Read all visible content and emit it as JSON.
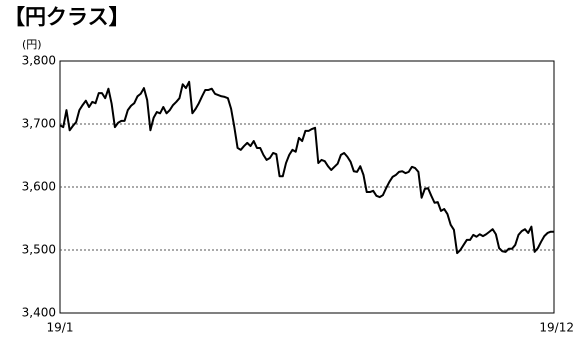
{
  "chart_data": {
    "type": "line",
    "title": "【円クラス】",
    "y_unit": "(円)",
    "categories": [
      "19/1",
      null,
      null,
      null,
      null,
      null,
      null,
      null,
      null,
      null,
      null,
      null,
      null,
      null,
      null,
      null,
      null,
      null,
      null,
      null,
      null,
      null,
      null,
      null,
      null,
      null,
      null,
      null,
      null,
      null,
      null,
      null,
      null,
      null,
      null,
      null,
      null,
      null,
      null,
      null,
      null,
      null,
      null,
      null,
      null,
      null,
      null,
      null,
      null,
      null,
      null,
      null,
      null,
      null,
      null,
      null,
      null,
      null,
      null,
      null,
      null,
      null,
      null,
      null,
      null,
      null,
      null,
      null,
      null,
      null,
      null,
      null,
      null,
      null,
      null,
      null,
      null,
      null,
      null,
      null,
      null,
      null,
      null,
      null,
      null,
      null,
      null,
      null,
      null,
      null,
      null,
      null,
      null,
      null,
      null,
      null,
      null,
      null,
      null,
      null,
      null,
      null,
      null,
      null,
      null,
      null,
      null,
      null,
      null,
      null,
      null,
      null,
      null,
      null,
      null,
      null,
      null,
      null,
      null,
      null,
      null,
      null,
      null,
      null,
      null,
      null,
      null,
      null,
      null,
      null,
      null,
      null,
      null,
      null,
      null,
      null,
      null,
      null,
      null,
      null,
      null,
      null,
      null,
      null,
      null,
      null,
      null,
      null,
      null,
      null,
      null,
      null,
      null,
      "19/12"
    ],
    "values": [
      3698,
      3695,
      3722,
      3690,
      3697,
      3703,
      3722,
      3730,
      3737,
      3727,
      3735,
      3733,
      3749,
      3749,
      3741,
      3756,
      3732,
      3695,
      3702,
      3705,
      3705,
      3722,
      3729,
      3733,
      3744,
      3748,
      3757,
      3738,
      3690,
      3710,
      3719,
      3717,
      3727,
      3717,
      3722,
      3730,
      3735,
      3741,
      3763,
      3757,
      3767,
      3717,
      3724,
      3733,
      3744,
      3754,
      3754,
      3756,
      3748,
      3746,
      3744,
      3743,
      3741,
      3724,
      3695,
      3662,
      3659,
      3665,
      3670,
      3665,
      3673,
      3662,
      3662,
      3651,
      3643,
      3646,
      3654,
      3652,
      3617,
      3617,
      3638,
      3651,
      3659,
      3656,
      3678,
      3673,
      3689,
      3689,
      3692,
      3694,
      3638,
      3643,
      3641,
      3633,
      3627,
      3632,
      3637,
      3651,
      3654,
      3648,
      3640,
      3625,
      3624,
      3633,
      3619,
      3592,
      3592,
      3594,
      3586,
      3584,
      3587,
      3598,
      3608,
      3616,
      3619,
      3624,
      3625,
      3622,
      3624,
      3632,
      3630,
      3624,
      3583,
      3597,
      3598,
      3586,
      3575,
      3576,
      3562,
      3565,
      3557,
      3540,
      3532,
      3495,
      3500,
      3508,
      3516,
      3516,
      3524,
      3521,
      3525,
      3522,
      3525,
      3529,
      3533,
      3525,
      3503,
      3498,
      3497,
      3502,
      3502,
      3508,
      3524,
      3530,
      3533,
      3527,
      3537,
      3497,
      3503,
      3513,
      3522,
      3527,
      3529,
      3529
    ],
    "color": "#000000",
    "ylim": [
      3400,
      3800
    ],
    "yticks": [
      {
        "value": 3400,
        "label": "3,400"
      },
      {
        "value": 3500,
        "label": "3,500"
      },
      {
        "value": 3600,
        "label": "3,600"
      },
      {
        "value": 3700,
        "label": "3,700"
      },
      {
        "value": 3800,
        "label": "3,800"
      }
    ],
    "grid": true
  }
}
